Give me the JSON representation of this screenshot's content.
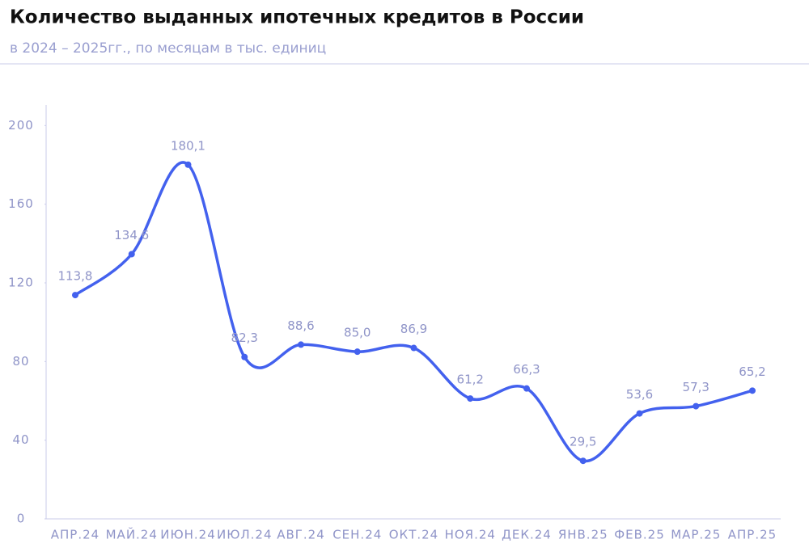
{
  "chart_data": {
    "type": "line",
    "title": "Количество выданных ипотечных кредитов в России",
    "subtitle": "в 2024 – 2025гг., по месяцам в тыс. единиц",
    "categories": [
      "АПР.24",
      "МАЙ.24",
      "ИЮН.24",
      "ИЮЛ.24",
      "АВГ.24",
      "СЕН.24",
      "ОКТ.24",
      "НОЯ.24",
      "ДЕК.24",
      "ЯНВ.25",
      "ФЕВ.25",
      "МАР.25",
      "АПР.25"
    ],
    "series": [
      {
        "color": "#4361ee",
        "values": [
          113.8,
          134.6,
          180.1,
          82.3,
          88.6,
          85.0,
          86.9,
          61.2,
          66.3,
          29.5,
          53.6,
          57.3,
          65.2
        ],
        "value_labels": [
          "113,8",
          "134,6",
          "180,1",
          "82,3",
          "88,6",
          "85,0",
          "86,9",
          "61,2",
          "66,3",
          "29,5",
          "53,6",
          "57,3",
          "65,2"
        ]
      }
    ],
    "ylim": [
      0,
      210
    ],
    "yticks": [
      0,
      40,
      80,
      120,
      160,
      200
    ],
    "grid": false
  }
}
